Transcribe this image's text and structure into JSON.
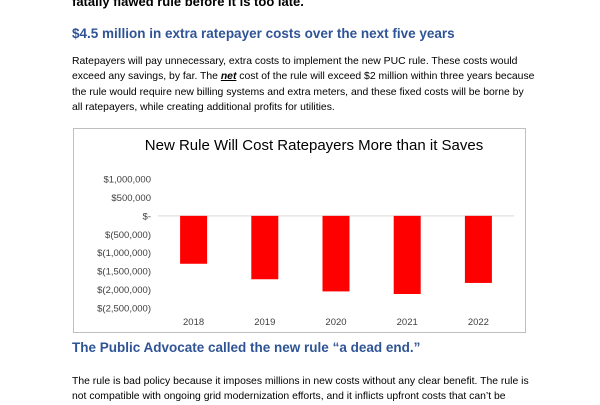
{
  "page": {
    "top_cut_text": "fatally flawed rule before it is too late.",
    "heading1": "$4.5 million in extra ratepayer costs over the next five years",
    "para1": {
      "line1": "Ratepayers will pay unnecessary, extra costs to implement the new PUC rule. These costs would",
      "line2_pre": "exceed any savings, by far.  The ",
      "line2_em": "net",
      "line2_post": " cost of the rule will exceed $2 million within three years because",
      "line3": "the rule would require new billing systems and extra meters, and these fixed costs will be borne by",
      "line4": "all ratepayers, while creating additional profits for utilities."
    },
    "heading2": "The Public Advocate called the new rule “a dead end.”",
    "para2": {
      "line1": "The rule is bad policy because it imposes millions in new costs without any clear benefit. The rule is",
      "line2": "not compatible with ongoing grid modernization efforts, and it inflicts upfront costs that can’t be"
    }
  },
  "chart_data": {
    "type": "bar",
    "title": "New Rule Will Cost Ratepayers More than it Saves",
    "categories": [
      "2018",
      "2019",
      "2020",
      "2021",
      "2022"
    ],
    "values": [
      -1300000,
      -1720000,
      -2050000,
      -2120000,
      -1820000
    ],
    "ylim": [
      -2500000,
      1000000
    ],
    "yticks": [
      1000000,
      500000,
      0,
      -500000,
      -1000000,
      -1500000,
      -2000000,
      -2500000
    ],
    "ytick_labels": [
      "$1,000,000",
      "$500,000",
      "$-",
      "$(500,000)",
      "$(1,000,000)",
      "$(1,500,000)",
      "$(2,000,000)",
      "$(2,500,000)"
    ],
    "bar_color": "#ff0000",
    "grid": false,
    "legend": "none"
  }
}
